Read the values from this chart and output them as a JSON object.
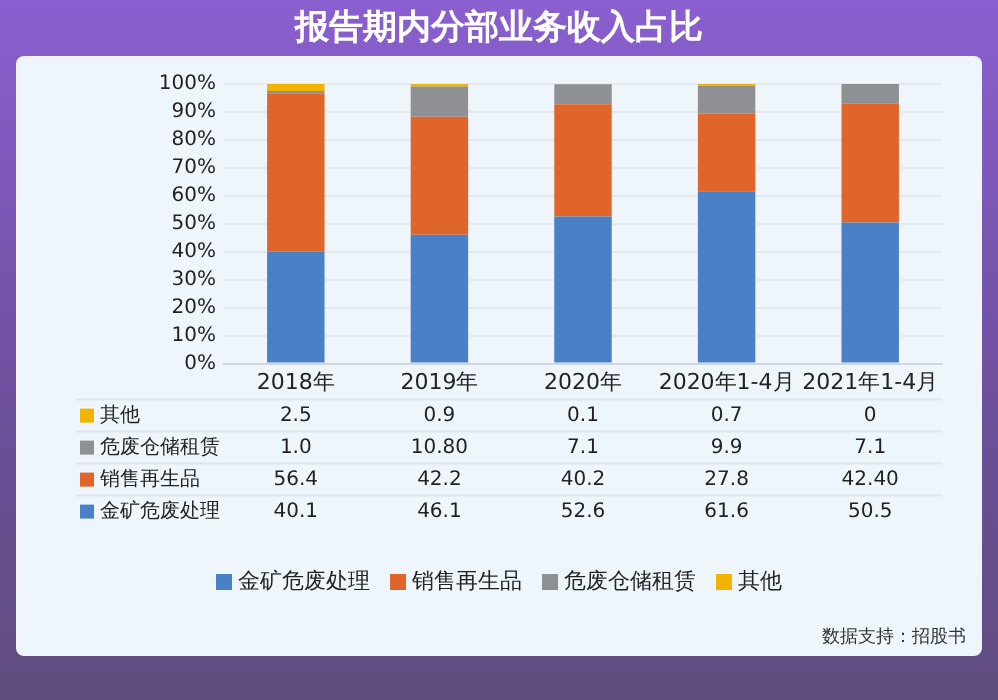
{
  "chart_data": {
    "type": "bar",
    "title": "报告期内分部业务收入占比",
    "stacked": true,
    "categories": [
      "2018年",
      "2019年",
      "2020年",
      "2020年1-4月",
      "2021年1-4月"
    ],
    "series": [
      {
        "name": "金矿危废处理",
        "color": "#4a80c6",
        "values": [
          40.1,
          46.1,
          52.6,
          61.6,
          50.5
        ],
        "value_labels": [
          "40.1",
          "46.1",
          "52.6",
          "61.6",
          "50.5"
        ]
      },
      {
        "name": "销售再生品",
        "color": "#e0652a",
        "values": [
          56.4,
          42.2,
          40.2,
          27.8,
          42.4
        ],
        "value_labels": [
          "56.4",
          "42.2",
          "40.2",
          "27.8",
          "42.40"
        ]
      },
      {
        "name": "危废仓储租赁",
        "color": "#8e9094",
        "values": [
          1.0,
          10.8,
          7.1,
          9.9,
          7.1
        ],
        "value_labels": [
          "1.0",
          "10.80",
          "7.1",
          "9.9",
          "7.1"
        ]
      },
      {
        "name": "其他",
        "color": "#f2b400",
        "values": [
          2.5,
          0.9,
          0.1,
          0.7,
          0
        ],
        "value_labels": [
          "2.5",
          "0.9",
          "0.1",
          "0.7",
          "0"
        ]
      }
    ],
    "ylim": [
      0,
      100
    ],
    "yticks": [
      {
        "value": 0,
        "label": "0%"
      },
      {
        "value": 10,
        "label": "10%"
      },
      {
        "value": 20,
        "label": "20%"
      },
      {
        "value": 30,
        "label": "30%"
      },
      {
        "value": 40,
        "label": "40%"
      },
      {
        "value": 50,
        "label": "50%"
      },
      {
        "value": 60,
        "label": "60%"
      },
      {
        "value": 70,
        "label": "70%"
      },
      {
        "value": 80,
        "label": "80%"
      },
      {
        "value": 90,
        "label": "90%"
      },
      {
        "value": 100,
        "label": "100%"
      }
    ],
    "grid": "y",
    "legend": "bottom",
    "annotations": [
      "数据支持：招股书"
    ]
  }
}
